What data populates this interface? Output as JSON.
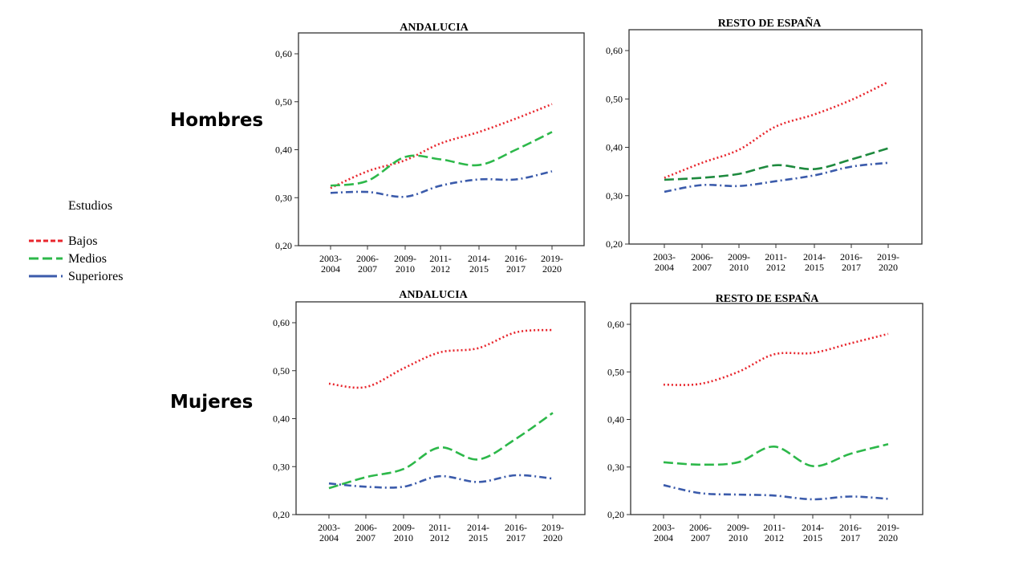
{
  "row_labels": {
    "top": "Hombres",
    "bottom": "Mujeres"
  },
  "legend": {
    "title": "Estudios",
    "items": [
      {
        "label": "Bajos",
        "color": "#e8262d",
        "style": "dotted"
      },
      {
        "label": "Medios",
        "color": "#2db84a",
        "style": "dashed"
      },
      {
        "label": "Superiores",
        "color": "#3b5bab",
        "style": "dashdot"
      }
    ]
  },
  "chart_data": [
    {
      "type": "line",
      "title": "ANDALUCIA",
      "categories": [
        "2003-\n2004",
        "2006-\n2007",
        "2009-\n2010",
        "2011-\n2012",
        "2014-\n2015",
        "2016-\n2017",
        "2019-\n2020"
      ],
      "ylim": [
        0.2,
        0.64
      ],
      "yticks": [
        "0,20",
        "0,30",
        "0,40",
        "0,50",
        "0,60"
      ],
      "series": [
        {
          "name": "Bajos",
          "values": [
            0.32,
            0.355,
            0.378,
            0.413,
            0.437,
            0.465,
            0.495
          ]
        },
        {
          "name": "Medios",
          "values": [
            0.325,
            0.335,
            0.385,
            0.38,
            0.368,
            0.4,
            0.437
          ]
        },
        {
          "name": "Superiores",
          "values": [
            0.31,
            0.312,
            0.302,
            0.325,
            0.338,
            0.338,
            0.355
          ]
        }
      ]
    },
    {
      "type": "line",
      "title": "RESTO DE ESPAÑA",
      "categories": [
        "2003-\n2004",
        "2006-\n2007",
        "2009-\n2010",
        "2011-\n2012",
        "2014-\n2015",
        "2016-\n2017",
        "2019-\n2020"
      ],
      "ylim": [
        0.2,
        0.645
      ],
      "yticks": [
        "0,20",
        "0,30",
        "0,40",
        "0,50",
        "0,60"
      ],
      "series": [
        {
          "name": "Bajos",
          "values": [
            0.337,
            0.368,
            0.395,
            0.443,
            0.468,
            0.498,
            0.535
          ]
        },
        {
          "name": "Medios",
          "values": [
            0.333,
            0.337,
            0.345,
            0.363,
            0.355,
            0.375,
            0.398
          ]
        },
        {
          "name": "Superiores",
          "values": [
            0.308,
            0.322,
            0.32,
            0.33,
            0.342,
            0.36,
            0.368
          ]
        }
      ]
    },
    {
      "type": "line",
      "title": "ANDALUCIA",
      "categories": [
        "2003-\n2004",
        "2006-\n2007",
        "2009-\n2010",
        "2011-\n2012",
        "2014-\n2015",
        "2016-\n2017",
        "2019-\n2020"
      ],
      "ylim": [
        0.2,
        0.64
      ],
      "yticks": [
        "0,20",
        "0,30",
        "0,40",
        "0,50",
        "0,60"
      ],
      "series": [
        {
          "name": "Bajos",
          "values": [
            0.473,
            0.466,
            0.505,
            0.538,
            0.547,
            0.58,
            0.585
          ]
        },
        {
          "name": "Medios",
          "values": [
            0.255,
            0.278,
            0.295,
            0.34,
            0.315,
            0.358,
            0.412
          ]
        },
        {
          "name": "Superiores",
          "values": [
            0.265,
            0.258,
            0.258,
            0.28,
            0.268,
            0.282,
            0.275
          ]
        }
      ]
    },
    {
      "type": "line",
      "title": "RESTO DE ESPAÑA",
      "categories": [
        "2003-\n2004",
        "2006-\n2007",
        "2009-\n2010",
        "2011-\n2012",
        "2014-\n2015",
        "2016-\n2017",
        "2019-\n2020"
      ],
      "ylim": [
        0.2,
        0.645
      ],
      "yticks": [
        "0,20",
        "0,30",
        "0,40",
        "0,50",
        "0,60"
      ],
      "series": [
        {
          "name": "Bajos",
          "values": [
            0.473,
            0.475,
            0.5,
            0.537,
            0.54,
            0.56,
            0.58
          ]
        },
        {
          "name": "Medios",
          "values": [
            0.31,
            0.305,
            0.31,
            0.343,
            0.302,
            0.328,
            0.348
          ]
        },
        {
          "name": "Superiores",
          "values": [
            0.262,
            0.245,
            0.242,
            0.24,
            0.232,
            0.238,
            0.233
          ]
        }
      ]
    }
  ]
}
